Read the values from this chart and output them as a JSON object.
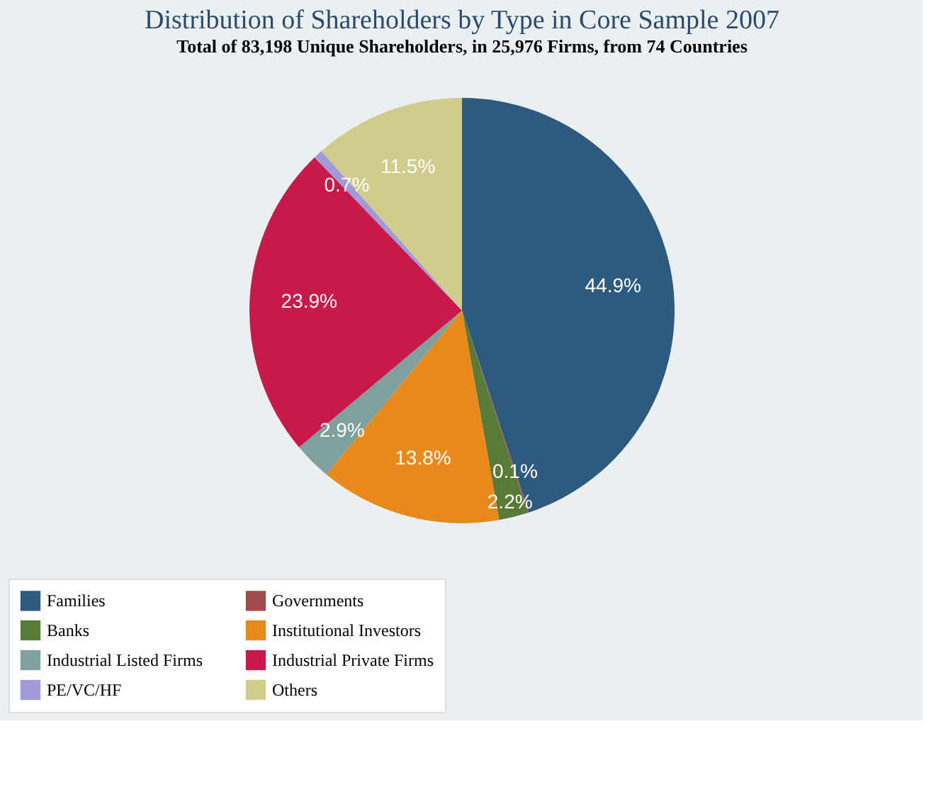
{
  "chart_data": {
    "type": "pie",
    "title": "Distribution of Shareholders by Type in Core Sample 2007",
    "subtitle": "Total of 83,198 Unique Shareholders, in 25,976 Firms, from 74 Countries",
    "categories": [
      "Families",
      "Governments",
      "Banks",
      "Institutional Investors",
      "Industrial Listed Firms",
      "Industrial Private Firms",
      "PE/VC/HF",
      "Others"
    ],
    "values": [
      44.9,
      0.1,
      2.2,
      13.8,
      2.9,
      23.9,
      0.7,
      11.5
    ],
    "value_labels": [
      "44.9%",
      "0.1%",
      "2.2%",
      "13.8%",
      "2.9%",
      "23.9%",
      "0.7%",
      "11.5%"
    ],
    "colors": [
      "#2e5a80",
      "#a04a4e",
      "#5a7a38",
      "#e88a1a",
      "#7fa09c",
      "#c8194a",
      "#a09ad8",
      "#d0cc8c"
    ],
    "legend": "bottom"
  }
}
